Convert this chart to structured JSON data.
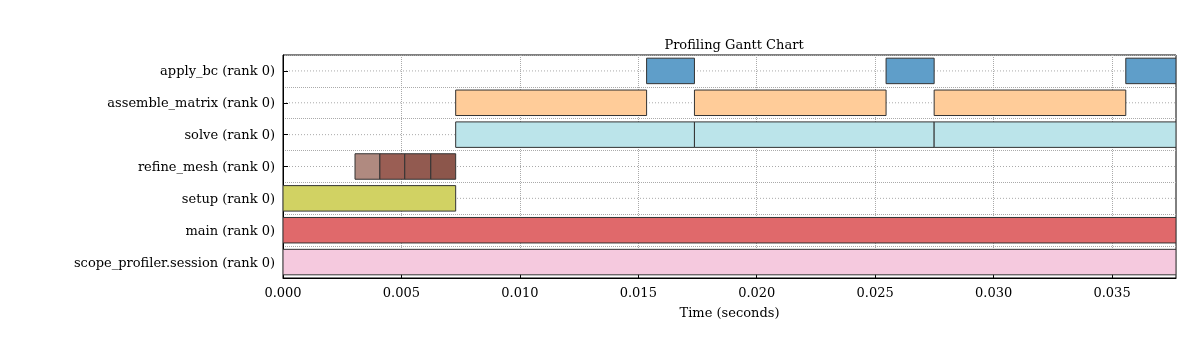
{
  "chart_data": {
    "type": "bar",
    "orientation": "horizontal",
    "title": "Profiling Gantt Chart",
    "xlabel": "Time (seconds)",
    "categories": [
      "apply_bc (rank 0)",
      "assemble_matrix (rank 0)",
      "solve (rank 0)",
      "refine_mesh (rank 0)",
      "setup (rank 0)",
      "main (rank 0)",
      "scope_profiler.session (rank 0)"
    ],
    "series": [
      {
        "base": [
          0.01535,
          0.00729,
          0.00729,
          0.00304,
          0,
          0,
          0
        ],
        "values": [
          0.00202,
          0.00806,
          0.01008,
          0.00105,
          0.00729,
          0.0377,
          0.0377
        ],
        "colors": [
          "#5f9ec9",
          "#ffcc99",
          "#bbe4ea",
          "#b08a80",
          "#d1d263",
          "#e0696b",
          "#f5c9de"
        ]
      },
      {
        "base": [
          0.02546,
          0.01737,
          0.01737,
          0.00409,
          null,
          null,
          null
        ],
        "values": [
          0.00203,
          0.00809,
          0.01012,
          0.00105,
          null,
          null,
          null
        ],
        "colors": [
          "#5f9ec9",
          "#ffcc99",
          "#bbe4ea",
          "#9a5e54",
          null,
          null,
          null
        ]
      },
      {
        "base": [
          0.03558,
          0.02749,
          0.02749,
          0.00514,
          null,
          null,
          null
        ],
        "values": [
          0.00212,
          0.00809,
          0.01021,
          0.0011,
          null,
          null,
          null
        ],
        "colors": [
          "#5f9ec9",
          "#ffcc99",
          "#bbe4ea",
          "#925a50",
          null,
          null,
          null
        ]
      },
      {
        "base": [
          null,
          null,
          null,
          0.00624,
          null,
          null,
          null
        ],
        "values": [
          null,
          null,
          null,
          0.00105,
          null,
          null,
          null
        ],
        "colors": [
          null,
          null,
          null,
          "#8c564b",
          null,
          null,
          null
        ]
      }
    ],
    "xlim": [
      0,
      0.0377
    ],
    "xticks": [
      {
        "value": 0,
        "label": "0.000"
      },
      {
        "value": 0.005,
        "label": "0.005"
      },
      {
        "value": 0.01,
        "label": "0.010"
      },
      {
        "value": 0.015,
        "label": "0.015"
      },
      {
        "value": 0.02,
        "label": "0.020"
      },
      {
        "value": 0.025,
        "label": "0.025"
      },
      {
        "value": 0.03,
        "label": "0.030"
      },
      {
        "value": 0.035,
        "label": "0.035"
      }
    ],
    "grid": true,
    "line_style": "solid"
  }
}
